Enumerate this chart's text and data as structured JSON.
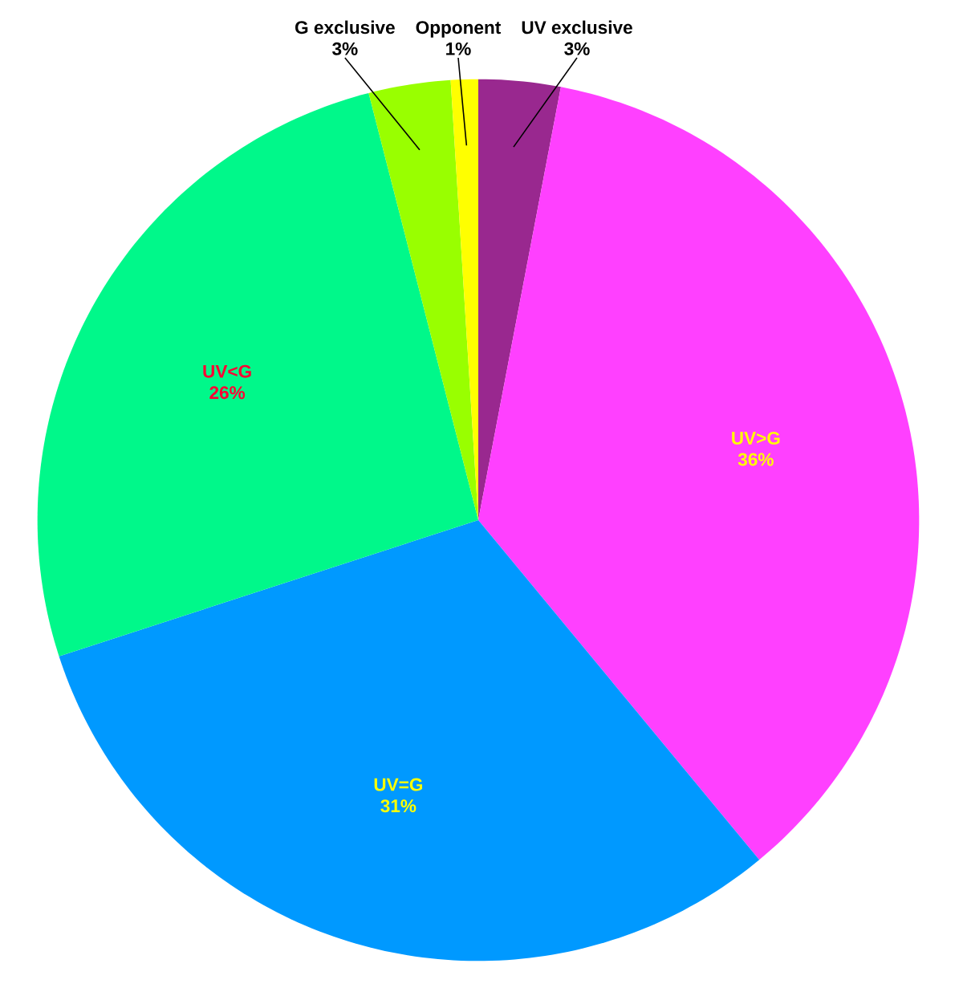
{
  "chart_data": {
    "type": "pie",
    "categories": [
      "UV exclusive",
      "UV>G",
      "UV=G",
      "UV<G",
      "G exclusive",
      "Opponent"
    ],
    "values": [
      3,
      36,
      31,
      26,
      3,
      1
    ],
    "value_labels": [
      "3%",
      "36%",
      "31%",
      "26%",
      "3%",
      "1%"
    ],
    "colors": [
      "#99288f",
      "#ff40ff",
      "#0099ff",
      "#00f88a",
      "#99ff00",
      "#ffff00"
    ],
    "legend": false
  }
}
